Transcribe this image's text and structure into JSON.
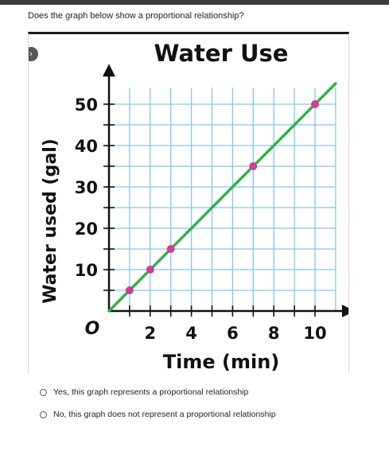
{
  "question": "Does the graph below show a proportional relationship?",
  "options": [
    {
      "label": "Yes, this graph represents a proportional relationship",
      "selected": false
    },
    {
      "label": "No, this graph does not represent a proportional relationship",
      "selected": false
    }
  ],
  "chart_data": {
    "type": "line",
    "title": "Water Use",
    "xlabel": "Time (min)",
    "ylabel": "Water used (gal)",
    "origin_label": "O",
    "xlim": [
      0,
      11
    ],
    "ylim": [
      0,
      54
    ],
    "x_tick_labels": [
      "2",
      "4",
      "6",
      "8",
      "10"
    ],
    "y_tick_labels": [
      "10",
      "20",
      "30",
      "40",
      "50"
    ],
    "grid": true,
    "series": [
      {
        "values": [
          [
            0,
            0
          ],
          [
            11,
            55
          ]
        ]
      }
    ],
    "points": [
      [
        1,
        5
      ],
      [
        2,
        10
      ],
      [
        3,
        15
      ],
      [
        7,
        35
      ],
      [
        10,
        50
      ]
    ],
    "colors": {
      "line": "#2fb34a",
      "points": "#d4399a",
      "grid": "#7fc8ef",
      "axis": "#111111"
    }
  }
}
